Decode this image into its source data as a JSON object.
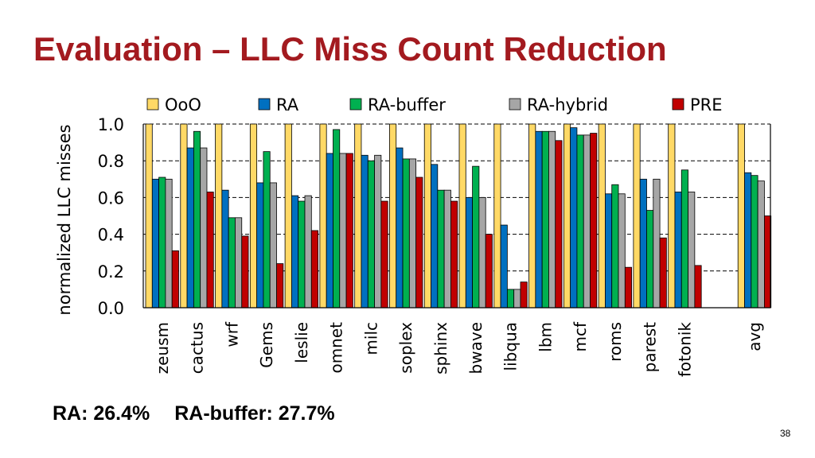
{
  "slide": {
    "title": "Evaluation – LLC Miss Count Reduction",
    "summary_ra": "RA: 26.4%",
    "summary_rabuffer": "RA-buffer: 27.7%",
    "page_number": "38"
  },
  "chart_data": {
    "type": "bar",
    "ylabel": "normalized LLC misses",
    "xlabel": "",
    "ylim": [
      0,
      1.0
    ],
    "yticks": [
      "0.0",
      "0.2",
      "0.4",
      "0.6",
      "0.8",
      "1.0"
    ],
    "grid": true,
    "legend_position": "top",
    "categories": [
      "zeusm",
      "cactus",
      "wrf",
      "Gems",
      "leslie",
      "omnet",
      "milc",
      "soplex",
      "sphinx",
      "bwave",
      "libqua",
      "lbm",
      "mcf",
      "roms",
      "parest",
      "fotonik",
      "",
      "avg"
    ],
    "series": [
      {
        "name": "OoO",
        "color": "#ffd966",
        "values": [
          1.0,
          1.0,
          1.0,
          1.0,
          1.0,
          1.0,
          1.0,
          1.0,
          1.0,
          1.0,
          1.0,
          1.0,
          1.0,
          1.0,
          1.0,
          1.0,
          null,
          1.0
        ]
      },
      {
        "name": "RA",
        "color": "#0070c0",
        "values": [
          0.7,
          0.87,
          0.64,
          0.68,
          0.61,
          0.84,
          0.83,
          0.87,
          0.78,
          0.6,
          0.45,
          0.96,
          0.98,
          0.62,
          0.7,
          0.63,
          null,
          0.735
        ]
      },
      {
        "name": "RA-buffer",
        "color": "#00b050",
        "values": [
          0.71,
          0.96,
          0.49,
          0.85,
          0.58,
          0.97,
          0.8,
          0.81,
          0.64,
          0.77,
          0.1,
          0.96,
          0.94,
          0.67,
          0.53,
          0.75,
          null,
          0.72
        ]
      },
      {
        "name": "RA-hybrid",
        "color": "#a6a6a6",
        "values": [
          0.7,
          0.87,
          0.49,
          0.68,
          0.61,
          0.84,
          0.83,
          0.81,
          0.64,
          0.6,
          0.1,
          0.96,
          0.94,
          0.62,
          0.7,
          0.63,
          null,
          0.69
        ]
      },
      {
        "name": "PRE",
        "color": "#c00000",
        "values": [
          0.31,
          0.63,
          0.39,
          0.24,
          0.42,
          0.84,
          0.58,
          0.71,
          0.58,
          0.4,
          0.14,
          0.91,
          0.95,
          0.22,
          0.38,
          0.23,
          null,
          0.5
        ]
      }
    ]
  }
}
